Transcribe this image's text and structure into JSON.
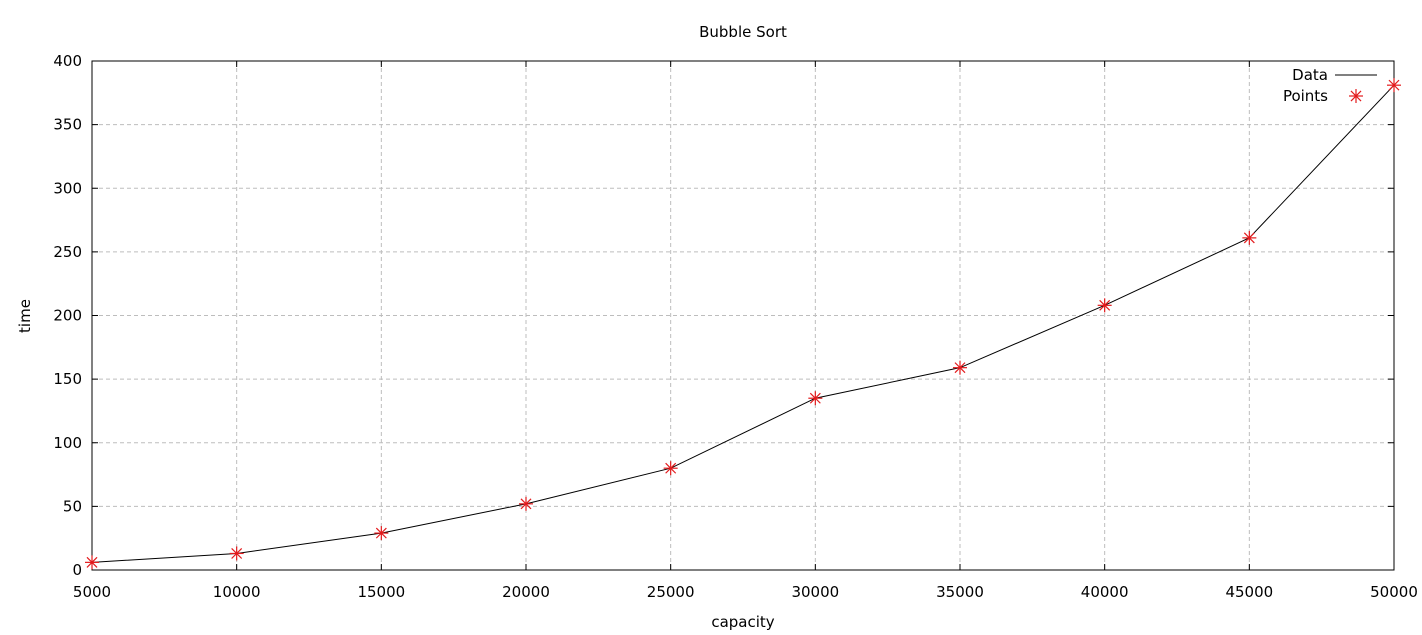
{
  "chart_data": {
    "type": "line",
    "title": "Bubble Sort",
    "xlabel": "capacity",
    "ylabel": "time",
    "xlim": [
      5000,
      50000
    ],
    "ylim": [
      0,
      400
    ],
    "xticks": [
      5000,
      10000,
      15000,
      20000,
      25000,
      30000,
      35000,
      40000,
      45000,
      50000
    ],
    "yticks": [
      0,
      50,
      100,
      150,
      200,
      250,
      300,
      350,
      400
    ],
    "grid": true,
    "legend_position": "top-right",
    "series": [
      {
        "name": "Data",
        "style": "line",
        "color": "#000000",
        "x": [
          5000,
          10000,
          15000,
          20000,
          25000,
          30000,
          35000,
          40000,
          45000,
          50000
        ],
        "y": [
          6,
          13,
          29,
          52,
          80,
          135,
          159,
          208,
          261,
          381
        ]
      },
      {
        "name": "Points",
        "style": "markers",
        "marker": "asterisk",
        "color": "#e31a1c",
        "x": [
          5000,
          10000,
          15000,
          20000,
          25000,
          30000,
          35000,
          40000,
          45000,
          50000
        ],
        "y": [
          6,
          13,
          29,
          52,
          80,
          135,
          159,
          208,
          261,
          381
        ]
      }
    ]
  }
}
